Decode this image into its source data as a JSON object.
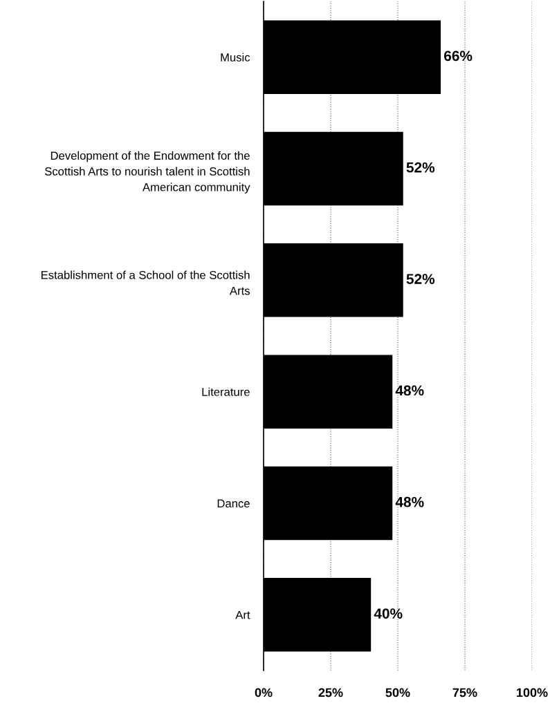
{
  "chart_data": {
    "type": "bar",
    "orientation": "horizontal",
    "categories": [
      "Music",
      "Development of the Endowment for the\nScottish Arts to nourish talent in Scottish\nAmerican community",
      "Establishment of a School of the Scottish\nArts",
      "Literature",
      "Dance",
      "Art"
    ],
    "values": [
      66,
      52,
      52,
      48,
      48,
      40
    ],
    "value_labels": [
      "66%",
      "52%",
      "52%",
      "48%",
      "48%",
      "40%"
    ],
    "color": "#000000",
    "xlim": [
      0,
      100
    ],
    "xticks": [
      {
        "value": 0,
        "label": "0%"
      },
      {
        "value": 25,
        "label": "25%"
      },
      {
        "value": 50,
        "label": "50%"
      },
      {
        "value": 75,
        "label": "75%"
      },
      {
        "value": 100,
        "label": "100%"
      }
    ],
    "grid": "x",
    "legend": false
  }
}
